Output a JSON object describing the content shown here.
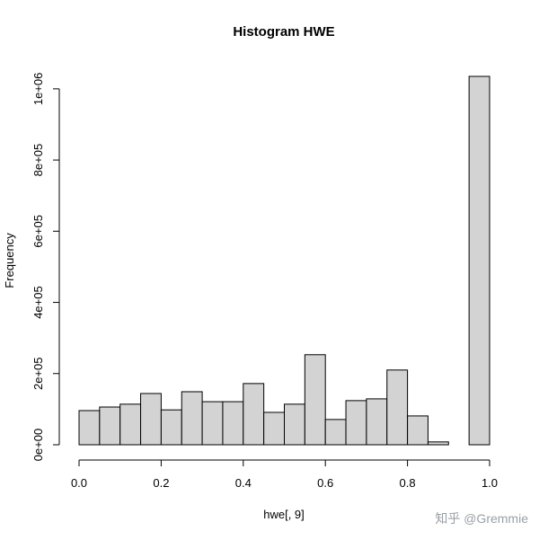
{
  "chart_data": {
    "type": "histogram",
    "title": "Histogram HWE",
    "x_label": "hwe[, 9]",
    "y_label": "Frequency",
    "bins": [
      0,
      0.05,
      0.1,
      0.15,
      0.2,
      0.25,
      0.3,
      0.35,
      0.4,
      0.45,
      0.5,
      0.55,
      0.6,
      0.65,
      0.7,
      0.75,
      0.8,
      0.85,
      0.9,
      0.95,
      1
    ],
    "values": [
      96000,
      106000,
      114000,
      144000,
      98000,
      149000,
      121000,
      121000,
      172000,
      91000,
      114000,
      253000,
      71000,
      124000,
      129000,
      210000,
      81000,
      8000,
      0,
      1035000
    ],
    "color": "#d3d3d3",
    "xlim": [
      0,
      1
    ],
    "xticks": [
      {
        "value": 0,
        "label": "0.0"
      },
      0.2,
      0.4,
      0.6,
      0.8,
      {
        "value": 1,
        "label": "1.0"
      }
    ],
    "ylim": [
      0,
      1035000
    ],
    "yticks": [
      {
        "value": 0,
        "label": "0e+00"
      },
      {
        "value": 200000,
        "label": "2e+05"
      },
      {
        "value": 400000,
        "label": "4e+05"
      },
      {
        "value": 600000,
        "label": "6e+05"
      },
      {
        "value": 800000,
        "label": "8e+05"
      },
      {
        "value": 1000000,
        "label": "1e+06"
      }
    ],
    "watermark": "知乎 @Gremmie"
  }
}
